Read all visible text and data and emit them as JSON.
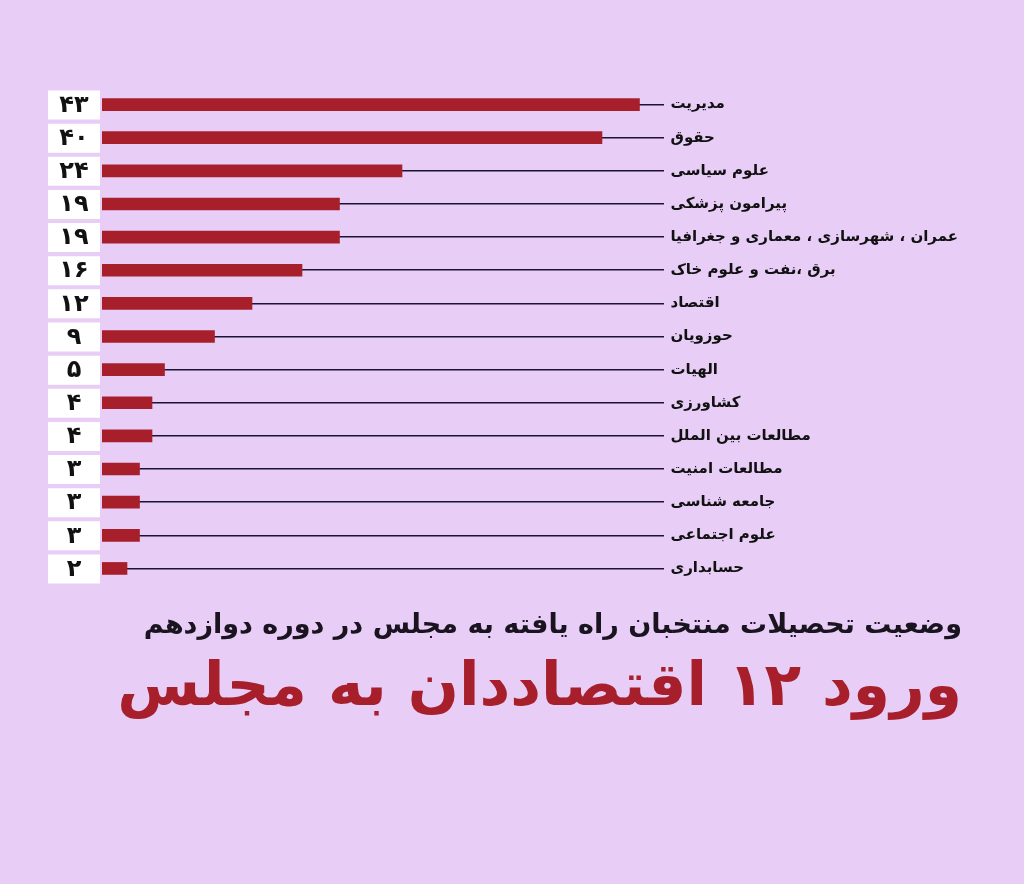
{
  "chart_data": {
    "type": "bar",
    "orientation": "horizontal",
    "title": "ورود ۱۲ اقتصاددان به مجلس",
    "subtitle": "وضعیت تحصیلات منتخبان راه یافته به مجلس در دوره دوازدهم",
    "categories": [
      "مدیریت",
      "حقوق",
      "علوم سیاسی",
      "پیرامون پزشکی",
      "عمران ، شهرسازی ، معماری و جغرافیا",
      "برق ،نفت و علوم خاک",
      "اقتصاد",
      "حوزویان",
      "الهیات",
      "کشاورزی",
      "مطالعات بین الملل",
      "مطالعات امنیت",
      "جامعه شناسی",
      "علوم اجتماعی",
      "حسابداری"
    ],
    "values": [
      43,
      40,
      24,
      19,
      19,
      16,
      12,
      9,
      5,
      4,
      4,
      3,
      3,
      3,
      2
    ],
    "value_labels": [
      "۴۳",
      "۴۰",
      "۲۴",
      "۱۹",
      "۱۹",
      "۱۶",
      "۱۲",
      "۹",
      "۵",
      "۴",
      "۴",
      "۳",
      "۳",
      "۳",
      "۲"
    ],
    "color": "#a81f2c",
    "grid": "y",
    "legend": false,
    "tick_labels": "y"
  }
}
